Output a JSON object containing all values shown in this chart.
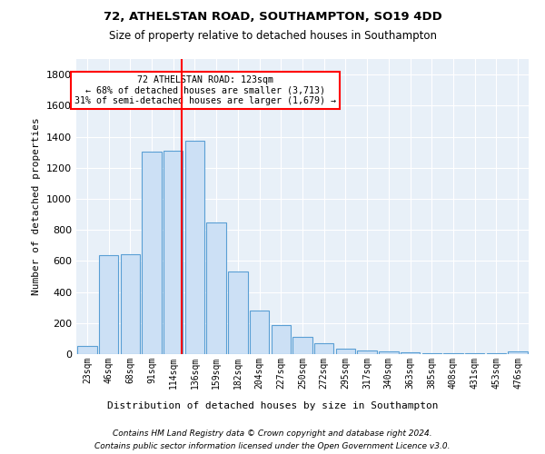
{
  "title1": "72, ATHELSTAN ROAD, SOUTHAMPTON, SO19 4DD",
  "title2": "Size of property relative to detached houses in Southampton",
  "xlabel": "Distribution of detached houses by size in Southampton",
  "ylabel": "Number of detached properties",
  "bins": [
    "23sqm",
    "46sqm",
    "68sqm",
    "91sqm",
    "114sqm",
    "136sqm",
    "159sqm",
    "182sqm",
    "204sqm",
    "227sqm",
    "250sqm",
    "272sqm",
    "295sqm",
    "317sqm",
    "340sqm",
    "363sqm",
    "385sqm",
    "408sqm",
    "431sqm",
    "453sqm",
    "476sqm"
  ],
  "bar_values": [
    55,
    640,
    645,
    1305,
    1310,
    1375,
    845,
    530,
    280,
    185,
    110,
    70,
    38,
    22,
    15,
    10,
    8,
    5,
    4,
    3,
    15
  ],
  "bar_color": "#cce0f5",
  "bar_edge_color": "#5a9fd4",
  "vline_x": 5,
  "vline_color": "red",
  "annotation_text": "72 ATHELSTAN ROAD: 123sqm\n← 68% of detached houses are smaller (3,713)\n31% of semi-detached houses are larger (1,679) →",
  "annotation_box_color": "white",
  "annotation_box_edge": "red",
  "ylim": [
    0,
    1900
  ],
  "yticks": [
    0,
    200,
    400,
    600,
    800,
    1000,
    1200,
    1400,
    1600,
    1800
  ],
  "bg_color": "#e8f0f8",
  "footer1": "Contains HM Land Registry data © Crown copyright and database right 2024.",
  "footer2": "Contains public sector information licensed under the Open Government Licence v3.0."
}
